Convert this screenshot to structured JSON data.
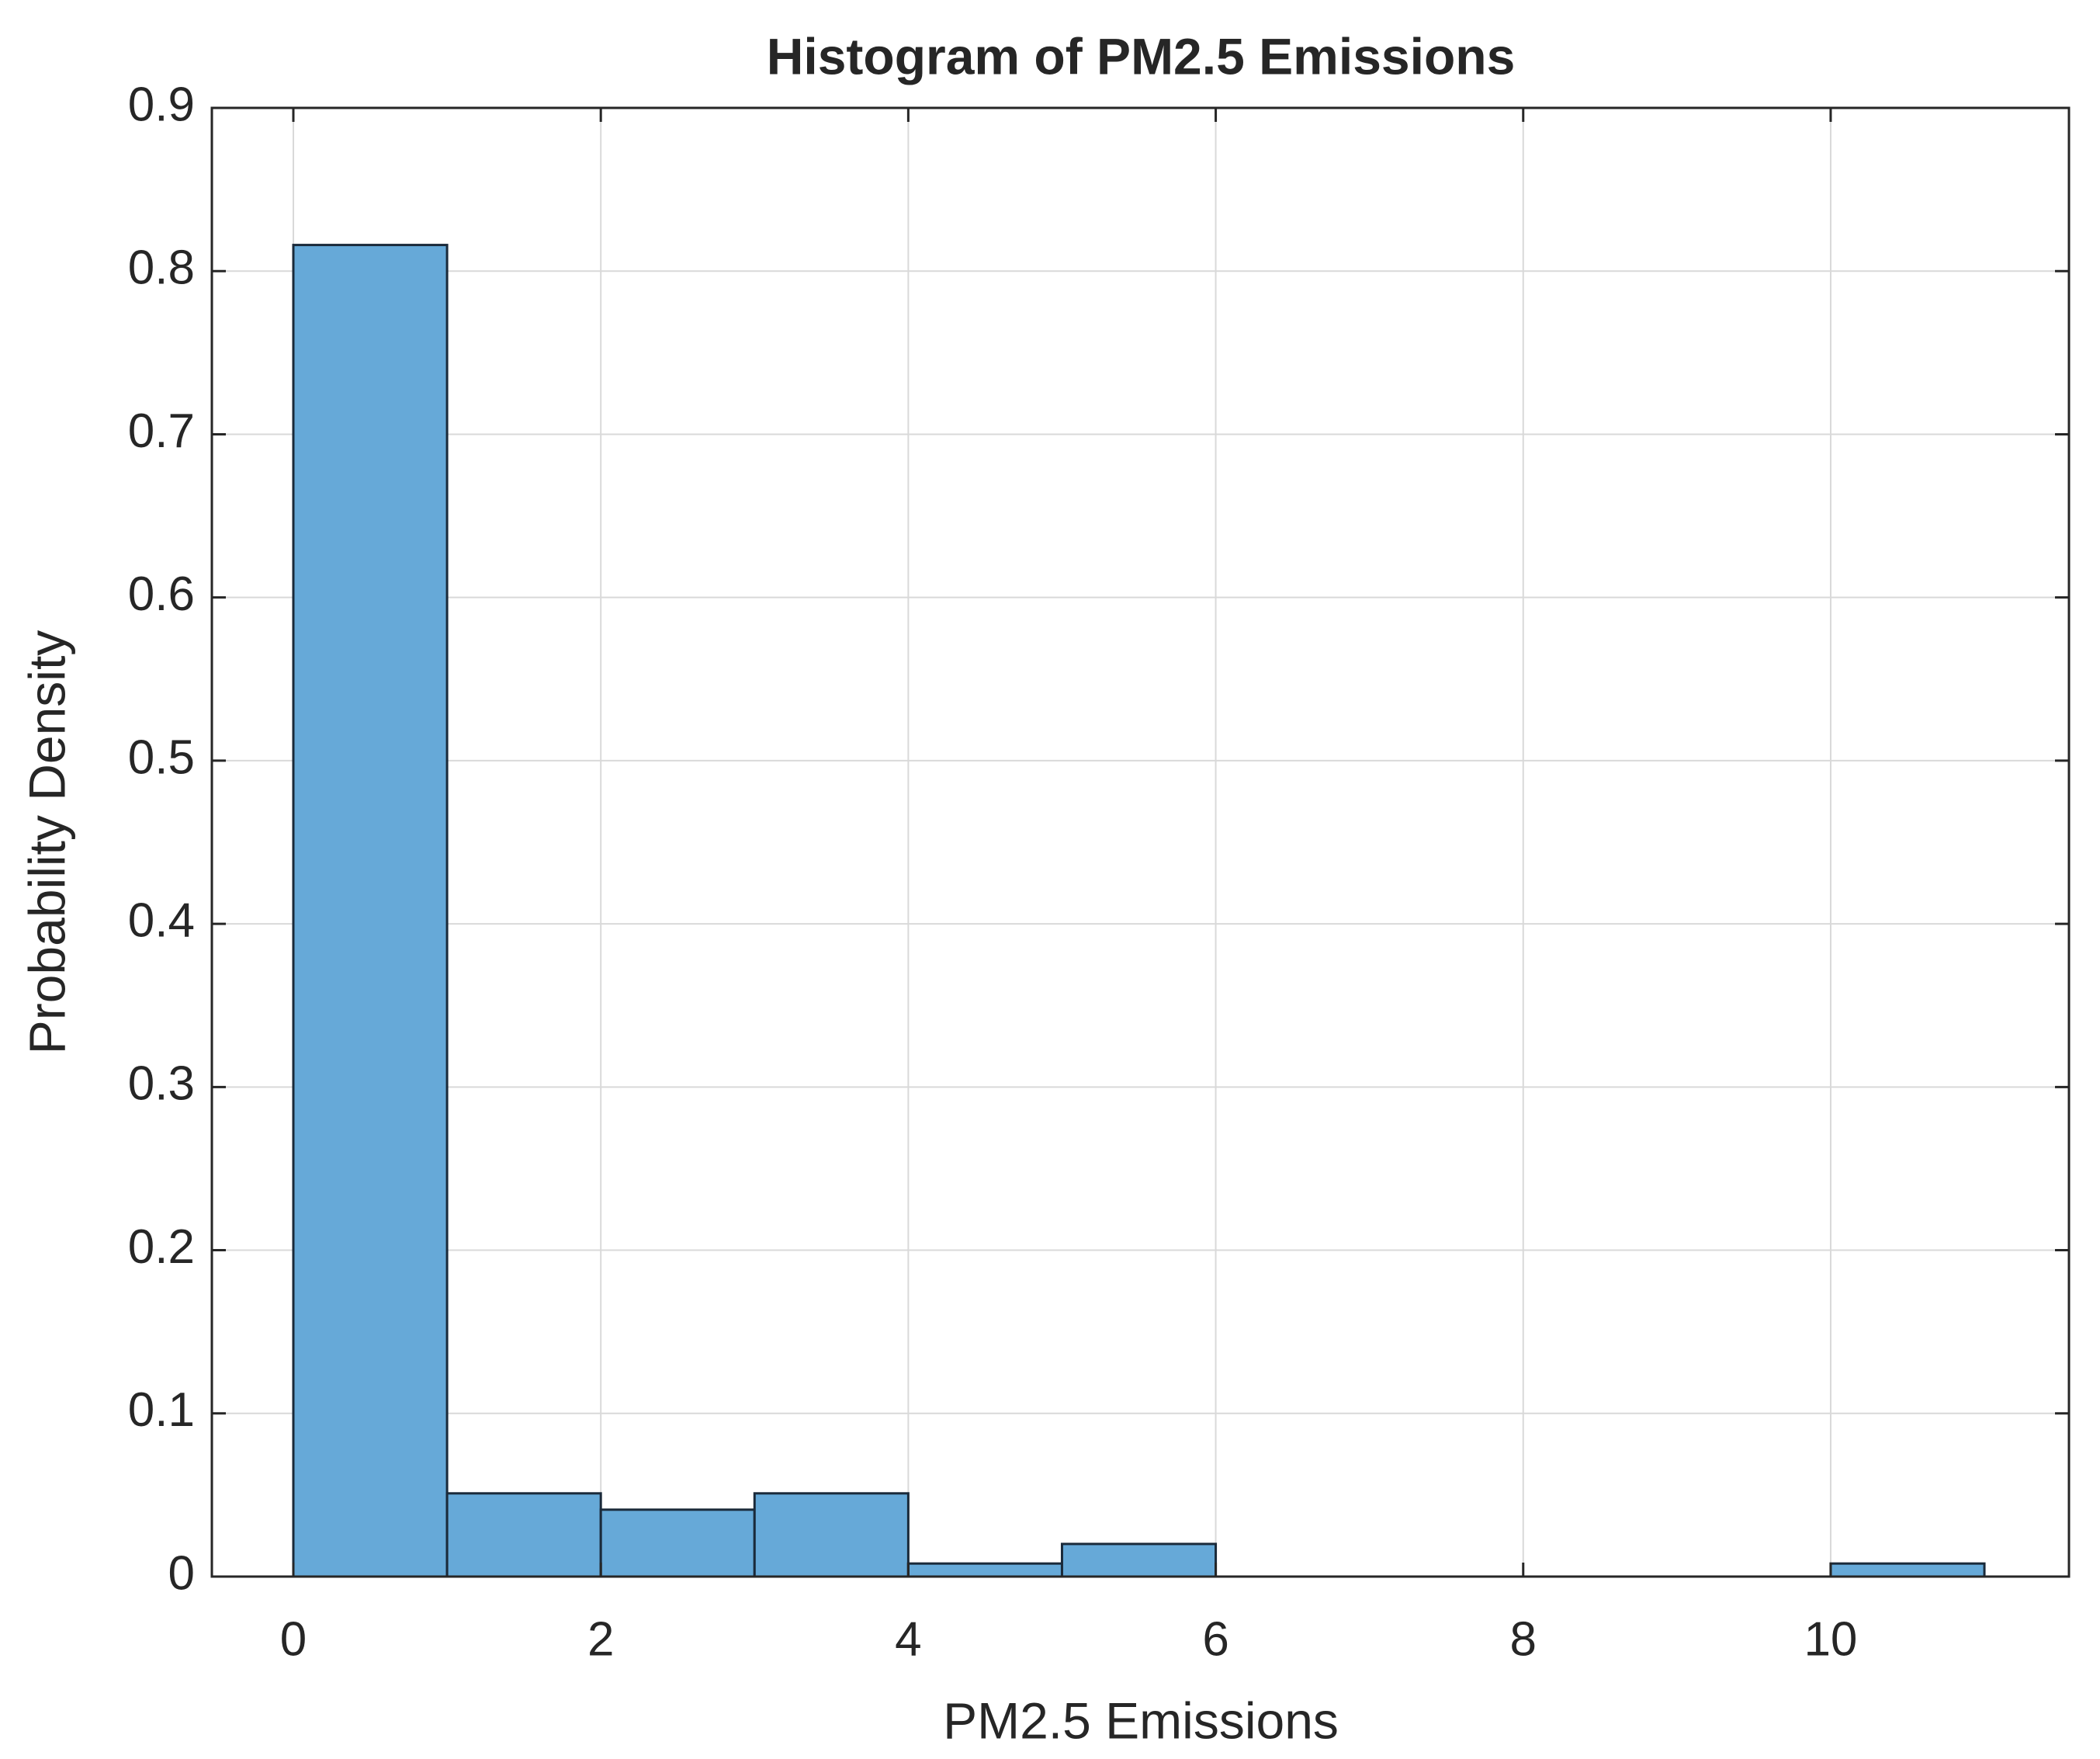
{
  "chart_data": {
    "type": "histogram",
    "title": "Histogram of PM2.5 Emissions",
    "x_label": "PM2.5 Emissions",
    "y_label": "Probability Density",
    "bins": [
      0,
      1,
      2,
      3,
      4,
      5,
      6,
      7,
      8,
      9,
      10,
      11
    ],
    "values": [
      0.816,
      0.051,
      0.041,
      0.051,
      0.008,
      0.02,
      0,
      0,
      0,
      0,
      0.008
    ],
    "color": "#66a9d8",
    "edge_color": "#1a2a3a",
    "xlim": [
      -0.53,
      11.55
    ],
    "xticks": [
      0,
      2,
      4,
      6,
      8,
      10
    ],
    "ylim": [
      0,
      0.9
    ],
    "yticks": [
      0,
      0.1,
      0.2,
      0.3,
      0.4,
      0.5,
      0.6,
      0.7,
      0.8,
      0.9
    ],
    "grid": true
  }
}
